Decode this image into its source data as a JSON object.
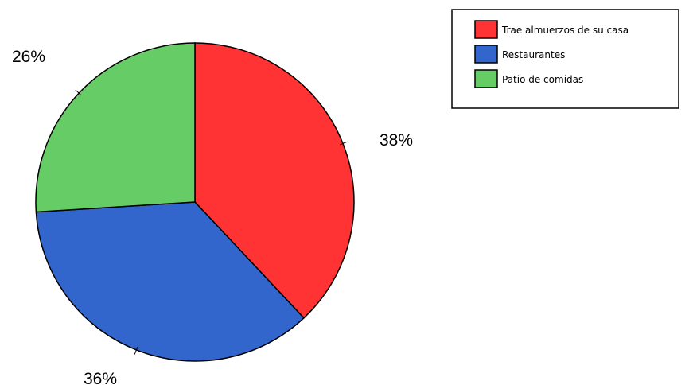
{
  "chart_data": {
    "type": "pie",
    "title": "",
    "categories": [
      "Trae almuerzos de su casa",
      "Restaurantes",
      "Patio de comidas"
    ],
    "values": [
      38,
      36,
      26
    ],
    "value_labels": [
      "38%",
      "36%",
      "26%"
    ],
    "colors": [
      "#ff3333",
      "#3366cc",
      "#66cc66"
    ],
    "legend_position": "top-right",
    "start_angle_deg": 0,
    "direction": "clockwise"
  }
}
